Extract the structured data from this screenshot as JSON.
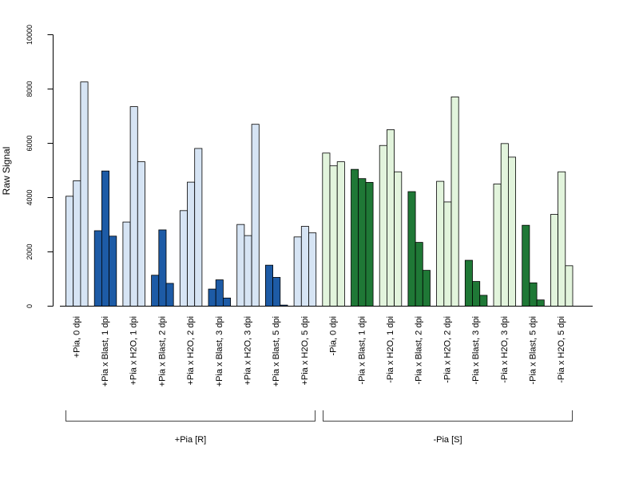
{
  "chart_data": {
    "type": "bar",
    "title": "",
    "xlabel": "",
    "ylabel": "Raw Signal",
    "ylim": [
      0,
      10000
    ],
    "yticks": [
      0,
      2000,
      4000,
      6000,
      8000,
      10000
    ],
    "grid": false,
    "categories": [
      "+Pia, 0 dpi",
      "+Pia x Blast, 1 dpi",
      "+Pia x H2O, 1 dpi",
      "+Pia x Blast, 2 dpi",
      "+Pia x H2O, 2 dpi",
      "+Pia x Blast, 3 dpi",
      "+Pia x H2O, 3 dpi",
      "+Pia x Blast, 5 dpi",
      "+Pia x H2O, 5 dpi",
      "-Pia, 0 dpi",
      "-Pia x Blast, 1 dpi",
      "-Pia x H2O, 1 dpi",
      "-Pia x Blast, 2 dpi",
      "-Pia x H2O, 2 dpi",
      "-Pia x Blast, 3 dpi",
      "-Pia x H2O, 3 dpi",
      "-Pia x Blast, 5 dpi",
      "-Pia x H2O, 5 dpi"
    ],
    "replicates": [
      [
        4050,
        4620,
        8260
      ],
      [
        2780,
        4980,
        2580
      ],
      [
        3100,
        7350,
        5320
      ],
      [
        1140,
        2810,
        840
      ],
      [
        3520,
        4570,
        5810
      ],
      [
        630,
        970,
        300
      ],
      [
        3010,
        2600,
        6700
      ],
      [
        1510,
        1060,
        40
      ],
      [
        2550,
        2940,
        2700
      ],
      [
        5640,
        5170,
        5320
      ],
      [
        5040,
        4700,
        4560
      ],
      [
        5920,
        6500,
        4950
      ],
      [
        4220,
        2350,
        1320
      ],
      [
        4600,
        3840,
        7710
      ],
      [
        1690,
        910,
        400
      ],
      [
        4500,
        5990,
        5490
      ],
      [
        2980,
        860,
        230
      ],
      [
        3380,
        4950,
        1490
      ]
    ],
    "colors": [
      "#d6e4f4",
      "#1d5ba6",
      "#e2f4dc",
      "#1f7836"
    ],
    "groups": [
      {
        "label": "+Pia [R]",
        "start": 0,
        "end": 8
      },
      {
        "label": "-Pia [S]",
        "start": 9,
        "end": 17
      }
    ]
  }
}
